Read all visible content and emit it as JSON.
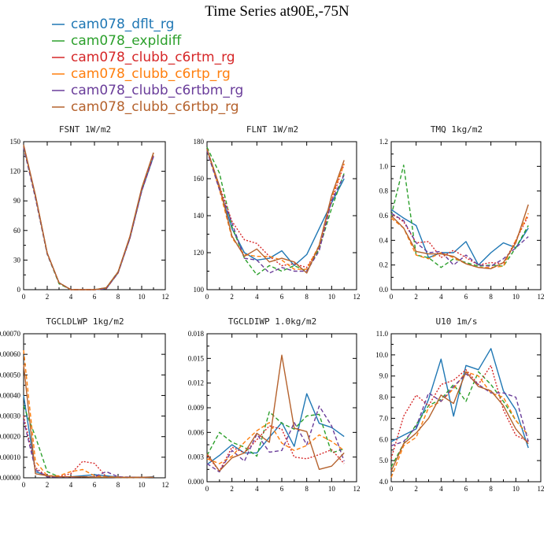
{
  "figure_title": "Time Series at90E,-75N",
  "legend": [
    {
      "label": "cam078_dflt_rg",
      "color": "#1f77b4",
      "dash": "solid"
    },
    {
      "label": "cam078_expldiff",
      "color": "#2ca02c",
      "dash": "dashed"
    },
    {
      "label": "cam078_clubb_c6rtm_rg",
      "color": "#d62728",
      "dash": "dotted"
    },
    {
      "label": "cam078_clubb_c6rtp_rg",
      "color": "#ff7f0e",
      "dash": "dashed"
    },
    {
      "label": "cam078_clubb_c6rtbm_rg",
      "color": "#6a3d9a",
      "dash": "dashed"
    },
    {
      "label": "cam078_clubb_c6rtbp_rg",
      "color": "#b5622d",
      "dash": "solid"
    }
  ],
  "chart_data": [
    {
      "type": "line",
      "title": "FSNT   1W/m2",
      "x": [
        0,
        1,
        2,
        3,
        4,
        5,
        6,
        7,
        8,
        9,
        10,
        11
      ],
      "xlim": [
        0,
        12
      ],
      "ylim": [
        0,
        150
      ],
      "xticks": [
        "0",
        "2",
        "4",
        "6",
        "8",
        "10",
        "12"
      ],
      "yticks": [
        "0",
        "30",
        "60",
        "90",
        "120",
        "150"
      ],
      "series": [
        {
          "name": "cam078_dflt_rg",
          "values": [
            146,
            95,
            37,
            7,
            0,
            0,
            0,
            1,
            17,
            52,
            100,
            135
          ]
        },
        {
          "name": "cam078_expldiff",
          "values": [
            144,
            93,
            36,
            6,
            0,
            0,
            0,
            2,
            18,
            53,
            101,
            137
          ]
        },
        {
          "name": "cam078_clubb_c6rtm_rg",
          "values": [
            145,
            94,
            37,
            7,
            0,
            0,
            0,
            1,
            17,
            52,
            100,
            136
          ]
        },
        {
          "name": "cam078_clubb_c6rtp_rg",
          "values": [
            145,
            95,
            37,
            7,
            0,
            0,
            0,
            1,
            17,
            53,
            102,
            138
          ]
        },
        {
          "name": "cam078_clubb_c6rtbm_rg",
          "values": [
            144,
            93,
            36,
            7,
            0,
            0,
            0,
            1,
            17,
            52,
            100,
            135
          ]
        },
        {
          "name": "cam078_clubb_c6rtbp_rg",
          "values": [
            147,
            96,
            37,
            7,
            0,
            0,
            0,
            2,
            18,
            54,
            103,
            139
          ]
        }
      ]
    },
    {
      "type": "line",
      "title": "FLNT   1W/m2",
      "x": [
        0,
        1,
        2,
        3,
        4,
        5,
        6,
        7,
        8,
        9,
        10,
        11
      ],
      "xlim": [
        0,
        12
      ],
      "ylim": [
        100,
        180
      ],
      "xticks": [
        "0",
        "2",
        "4",
        "6",
        "8",
        "10",
        "12"
      ],
      "yticks": [
        "100",
        "120",
        "140",
        "160",
        "180"
      ],
      "series": [
        {
          "name": "cam078_dflt_rg",
          "values": [
            176,
            155,
            133,
            120,
            116,
            117,
            121,
            113,
            119,
            133,
            147,
            160
          ]
        },
        {
          "name": "cam078_expldiff",
          "values": [
            177,
            163,
            134,
            117,
            108,
            113,
            110,
            113,
            110,
            122,
            144,
            163
          ]
        },
        {
          "name": "cam078_clubb_c6rtm_rg",
          "values": [
            176,
            156,
            137,
            127,
            125,
            118,
            113,
            114,
            112,
            123,
            148,
            168
          ]
        },
        {
          "name": "cam078_clubb_c6rtp_rg",
          "values": [
            176,
            154,
            128,
            119,
            118,
            118,
            116,
            111,
            111,
            124,
            150,
            168
          ]
        },
        {
          "name": "cam078_clubb_c6rtbm_rg",
          "values": [
            175,
            154,
            136,
            117,
            116,
            109,
            112,
            110,
            110,
            121,
            148,
            162
          ]
        },
        {
          "name": "cam078_clubb_c6rtbp_rg",
          "values": [
            176,
            156,
            129,
            118,
            122,
            115,
            117,
            115,
            109,
            124,
            151,
            170
          ]
        }
      ]
    },
    {
      "type": "line",
      "title": "TMQ   1kg/m2",
      "x": [
        0,
        1,
        2,
        3,
        4,
        5,
        6,
        7,
        8,
        9,
        10,
        11
      ],
      "xlim": [
        0,
        12
      ],
      "ylim": [
        0,
        1.2
      ],
      "xticks": [
        "0",
        "2",
        "4",
        "6",
        "8",
        "10",
        "12"
      ],
      "yticks": [
        "0.0",
        "0.2",
        "0.4",
        "0.6",
        "0.8",
        "1.0",
        "1.2"
      ],
      "series": [
        {
          "name": "cam078_dflt_rg",
          "values": [
            0.65,
            0.58,
            0.52,
            0.26,
            0.3,
            0.3,
            0.39,
            0.2,
            0.3,
            0.38,
            0.34,
            0.5
          ]
        },
        {
          "name": "cam078_expldiff",
          "values": [
            0.6,
            1.01,
            0.28,
            0.26,
            0.18,
            0.25,
            0.22,
            0.19,
            0.2,
            0.19,
            0.34,
            0.52
          ]
        },
        {
          "name": "cam078_clubb_c6rtm_rg",
          "values": [
            0.62,
            0.55,
            0.38,
            0.39,
            0.26,
            0.32,
            0.26,
            0.2,
            0.22,
            0.21,
            0.4,
            0.6
          ]
        },
        {
          "name": "cam078_clubb_c6rtp_rg",
          "values": [
            0.58,
            0.5,
            0.28,
            0.25,
            0.3,
            0.26,
            0.21,
            0.18,
            0.18,
            0.19,
            0.4,
            0.62
          ]
        },
        {
          "name": "cam078_clubb_c6rtbm_rg",
          "values": [
            0.62,
            0.56,
            0.38,
            0.3,
            0.31,
            0.2,
            0.28,
            0.2,
            0.19,
            0.25,
            0.34,
            0.43
          ]
        },
        {
          "name": "cam078_clubb_c6rtbp_rg",
          "values": [
            0.6,
            0.5,
            0.31,
            0.29,
            0.29,
            0.27,
            0.21,
            0.18,
            0.17,
            0.22,
            0.38,
            0.69
          ]
        }
      ]
    },
    {
      "type": "line",
      "title": "TGCLDLWP   1kg/m2",
      "x": [
        0,
        1,
        2,
        3,
        4,
        5,
        6,
        7,
        8,
        9,
        10,
        11
      ],
      "xlim": [
        0,
        12
      ],
      "ylim": [
        0,
        0.0007
      ],
      "xticks": [
        "0",
        "2",
        "4",
        "6",
        "8",
        "10",
        "12"
      ],
      "yticks": [
        "0.00000",
        "0.00010",
        "0.00020",
        "0.00030",
        "0.00040",
        "0.00050",
        "0.00060",
        "0.00070"
      ],
      "series": [
        {
          "name": "cam078_dflt_rg",
          "values": [
            0.0004,
            3e-05,
            1e-05,
            5e-06,
            5e-06,
            1e-05,
            1.5e-05,
            1e-05,
            3e-06,
            3e-06,
            2e-06,
            5e-06
          ]
        },
        {
          "name": "cam078_expldiff",
          "values": [
            0.00035,
            0.0002,
            3e-05,
            5e-06,
            5e-06,
            5e-06,
            3e-06,
            3e-06,
            2e-06,
            2e-06,
            2e-06,
            3e-06
          ]
        },
        {
          "name": "cam078_clubb_c6rtm_rg",
          "values": [
            0.0003,
            5e-05,
            5e-06,
            5e-06,
            2e-05,
            8e-05,
            7e-05,
            5e-06,
            2e-06,
            2e-06,
            2e-06,
            3e-06
          ]
        },
        {
          "name": "cam078_clubb_c6rtp_rg",
          "values": [
            0.00062,
            8e-05,
            1e-05,
            1e-05,
            3e-05,
            4e-05,
            1e-05,
            5e-06,
            3e-06,
            2e-06,
            2e-06,
            3e-06
          ]
        },
        {
          "name": "cam078_clubb_c6rtbm_rg",
          "values": [
            0.00028,
            4e-05,
            5e-06,
            3e-06,
            3e-06,
            5e-06,
            5e-06,
            3e-05,
            5e-06,
            3e-06,
            2e-06,
            3e-06
          ]
        },
        {
          "name": "cam078_clubb_c6rtbp_rg",
          "values": [
            0.00055,
            2e-05,
            1e-05,
            5e-06,
            5e-06,
            5e-06,
            3e-06,
            3e-06,
            2e-06,
            2e-06,
            2e-06,
            3e-06
          ]
        }
      ]
    },
    {
      "type": "line",
      "title": "TGCLDIWP   1.0kg/m2",
      "x": [
        0,
        1,
        2,
        3,
        4,
        5,
        6,
        7,
        8,
        9,
        10,
        11
      ],
      "xlim": [
        0,
        12
      ],
      "ylim": [
        0,
        0.018
      ],
      "xticks": [
        "0",
        "2",
        "4",
        "6",
        "8",
        "10",
        "12"
      ],
      "yticks": [
        "0.000",
        "0.003",
        "0.006",
        "0.009",
        "0.012",
        "0.015",
        "0.018"
      ],
      "series": [
        {
          "name": "cam078_dflt_rg",
          "values": [
            0.0021,
            0.0032,
            0.0045,
            0.0035,
            0.0035,
            0.0054,
            0.0072,
            0.0043,
            0.0107,
            0.0071,
            0.0066,
            0.0055
          ]
        },
        {
          "name": "cam078_expldiff",
          "values": [
            0.0032,
            0.006,
            0.0048,
            0.0042,
            0.0031,
            0.0085,
            0.0071,
            0.0064,
            0.008,
            0.0082,
            0.0035,
            0.004
          ]
        },
        {
          "name": "cam078_clubb_c6rtm_rg",
          "values": [
            0.0032,
            0.0013,
            0.0042,
            0.0035,
            0.0051,
            0.0068,
            0.0064,
            0.003,
            0.0028,
            0.0033,
            0.0039,
            0.0022
          ]
        },
        {
          "name": "cam078_clubb_c6rtp_rg",
          "values": [
            0.0028,
            0.0022,
            0.0031,
            0.0048,
            0.0062,
            0.0072,
            0.0047,
            0.0038,
            0.0044,
            0.0057,
            0.0049,
            0.0038
          ]
        },
        {
          "name": "cam078_clubb_c6rtbm_rg",
          "values": [
            0.0022,
            0.0012,
            0.0038,
            0.0025,
            0.0058,
            0.0036,
            0.0038,
            0.0072,
            0.0045,
            0.0092,
            0.0068,
            0.0025
          ]
        },
        {
          "name": "cam078_clubb_c6rtbp_rg",
          "values": [
            0.0034,
            0.0013,
            0.0029,
            0.0035,
            0.0059,
            0.0048,
            0.0154,
            0.0065,
            0.0061,
            0.0015,
            0.0019,
            0.0035
          ]
        }
      ]
    },
    {
      "type": "line",
      "title": "U10   1m/s",
      "x": [
        0,
        1,
        2,
        3,
        4,
        5,
        6,
        7,
        8,
        9,
        10,
        11
      ],
      "xlim": [
        0,
        12
      ],
      "ylim": [
        4,
        11
      ],
      "xticks": [
        "0",
        "2",
        "4",
        "6",
        "8",
        "10",
        "12"
      ],
      "yticks": [
        "4.0",
        "5.0",
        "6.0",
        "7.0",
        "8.0",
        "9.0",
        "10.0",
        "11.0"
      ],
      "series": [
        {
          "name": "cam078_dflt_rg",
          "values": [
            5.9,
            6.2,
            6.5,
            7.9,
            9.8,
            7.1,
            9.5,
            9.3,
            10.3,
            8.3,
            7.4,
            5.6
          ]
        },
        {
          "name": "cam078_expldiff",
          "values": [
            4.7,
            5.8,
            6.7,
            7.6,
            7.9,
            8.6,
            7.8,
            9.2,
            8.6,
            7.8,
            6.9,
            6.2
          ]
        },
        {
          "name": "cam078_clubb_c6rtm_rg",
          "values": [
            5.1,
            7.1,
            8.1,
            7.6,
            8.6,
            8.8,
            9.3,
            8.6,
            9.5,
            7.4,
            6.2,
            5.9
          ]
        },
        {
          "name": "cam078_clubb_c6rtp_rg",
          "values": [
            4.2,
            5.7,
            6.1,
            7.5,
            7.8,
            8.4,
            9.2,
            9.0,
            8.2,
            8.0,
            6.9,
            6.2
          ]
        },
        {
          "name": "cam078_clubb_c6rtbm_rg",
          "values": [
            5.7,
            5.9,
            6.6,
            8.2,
            7.8,
            8.5,
            9.1,
            8.6,
            8.2,
            8.2,
            8.0,
            5.9
          ]
        },
        {
          "name": "cam078_clubb_c6rtbp_rg",
          "values": [
            4.5,
            5.8,
            6.3,
            7.0,
            8.1,
            7.7,
            9.2,
            8.5,
            8.3,
            7.6,
            6.5,
            5.8
          ]
        }
      ]
    }
  ]
}
